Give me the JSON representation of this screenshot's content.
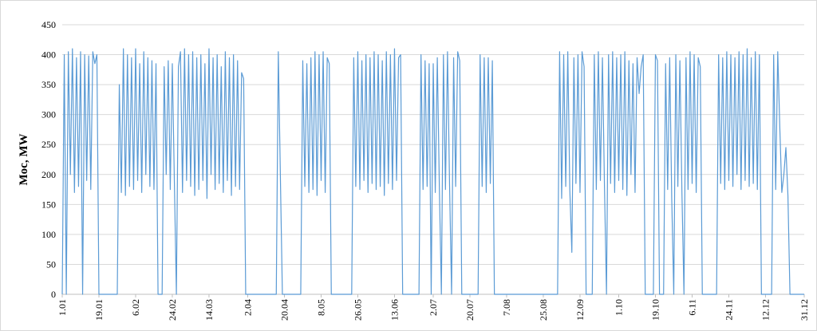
{
  "chart_data": {
    "type": "line",
    "y_label": "Moc, MW",
    "color": "#5b9bd5",
    "grid": true,
    "xlim": [
      0,
      364
    ],
    "ylim": [
      0,
      450
    ],
    "yticks": [
      0,
      50,
      100,
      150,
      200,
      250,
      300,
      350,
      400,
      450
    ],
    "xticks": [
      {
        "value": 0,
        "label": "1.01"
      },
      {
        "value": 18,
        "label": "19.01"
      },
      {
        "value": 36,
        "label": "6.02"
      },
      {
        "value": 54,
        "label": "24.02"
      },
      {
        "value": 72,
        "label": "14.03"
      },
      {
        "value": 91,
        "label": "2.04"
      },
      {
        "value": 109,
        "label": "20.04"
      },
      {
        "value": 127,
        "label": "8.05"
      },
      {
        "value": 145,
        "label": "26.05"
      },
      {
        "value": 163,
        "label": "13.06"
      },
      {
        "value": 182,
        "label": "2.07"
      },
      {
        "value": 200,
        "label": "20.07"
      },
      {
        "value": 218,
        "label": "7.08"
      },
      {
        "value": 236,
        "label": "25.08"
      },
      {
        "value": 254,
        "label": "12.09"
      },
      {
        "value": 273,
        "label": "1.10"
      },
      {
        "value": 291,
        "label": "19.10"
      },
      {
        "value": 309,
        "label": "6.11"
      },
      {
        "value": 327,
        "label": "24.11"
      },
      {
        "value": 345,
        "label": "12.12"
      },
      {
        "value": 364,
        "label": "31.12"
      }
    ],
    "x": [
      0,
      1,
      2,
      3,
      4,
      5,
      6,
      7,
      8,
      9,
      10,
      11,
      12,
      13,
      14,
      15,
      16,
      17,
      18,
      19,
      20,
      21,
      22,
      23,
      24,
      25,
      26,
      27,
      28,
      29,
      30,
      31,
      32,
      33,
      34,
      35,
      36,
      37,
      38,
      39,
      40,
      41,
      42,
      43,
      44,
      45,
      46,
      47,
      48,
      49,
      50,
      51,
      52,
      53,
      54,
      55,
      56,
      57,
      58,
      59,
      60,
      61,
      62,
      63,
      64,
      65,
      66,
      67,
      68,
      69,
      70,
      71,
      72,
      73,
      74,
      75,
      76,
      77,
      78,
      79,
      80,
      81,
      82,
      83,
      84,
      85,
      86,
      87,
      88,
      89,
      90,
      91,
      92,
      93,
      94,
      95,
      96,
      97,
      98,
      99,
      100,
      101,
      102,
      103,
      104,
      105,
      106,
      107,
      108,
      109,
      110,
      111,
      112,
      113,
      114,
      115,
      116,
      117,
      118,
      119,
      120,
      121,
      122,
      123,
      124,
      125,
      126,
      127,
      128,
      129,
      130,
      131,
      132,
      133,
      134,
      135,
      136,
      137,
      138,
      139,
      140,
      141,
      142,
      143,
      144,
      145,
      146,
      147,
      148,
      149,
      150,
      151,
      152,
      153,
      154,
      155,
      156,
      157,
      158,
      159,
      160,
      161,
      162,
      163,
      164,
      165,
      166,
      167,
      168,
      169,
      170,
      171,
      172,
      173,
      174,
      175,
      176,
      177,
      178,
      179,
      180,
      181,
      182,
      183,
      184,
      185,
      186,
      187,
      188,
      189,
      190,
      191,
      192,
      193,
      194,
      195,
      196,
      197,
      198,
      199,
      200,
      201,
      202,
      203,
      204,
      205,
      206,
      207,
      208,
      209,
      210,
      211,
      212,
      213,
      214,
      215,
      216,
      217,
      218,
      219,
      220,
      221,
      222,
      223,
      224,
      225,
      226,
      227,
      228,
      229,
      230,
      231,
      232,
      233,
      234,
      235,
      236,
      237,
      238,
      239,
      240,
      241,
      242,
      243,
      244,
      245,
      246,
      247,
      248,
      249,
      250,
      251,
      252,
      253,
      254,
      255,
      256,
      257,
      258,
      259,
      260,
      261,
      262,
      263,
      264,
      265,
      266,
      267,
      268,
      269,
      270,
      271,
      272,
      273,
      274,
      275,
      276,
      277,
      278,
      279,
      280,
      281,
      282,
      283,
      284,
      285,
      286,
      287,
      288,
      289,
      290,
      291,
      292,
      293,
      294,
      295,
      296,
      297,
      298,
      299,
      300,
      301,
      302,
      303,
      304,
      305,
      306,
      307,
      308,
      309,
      310,
      311,
      312,
      313,
      314,
      315,
      316,
      317,
      318,
      319,
      320,
      321,
      322,
      323,
      324,
      325,
      326,
      327,
      328,
      329,
      330,
      331,
      332,
      333,
      334,
      335,
      336,
      337,
      338,
      339,
      340,
      341,
      342,
      343,
      344,
      345,
      346,
      347,
      348,
      349,
      350,
      351,
      352,
      353,
      354,
      355,
      356,
      357,
      358,
      359,
      360,
      361,
      362,
      363,
      364
    ],
    "values": [
      0,
      400,
      0,
      405,
      200,
      410,
      170,
      395,
      180,
      405,
      0,
      400,
      190,
      398,
      175,
      405,
      385,
      400,
      0,
      0,
      0,
      0,
      0,
      0,
      0,
      0,
      0,
      0,
      350,
      170,
      410,
      165,
      400,
      180,
      395,
      175,
      410,
      190,
      385,
      170,
      405,
      200,
      395,
      180,
      390,
      175,
      385,
      0,
      0,
      0,
      380,
      200,
      390,
      175,
      385,
      190,
      0,
      380,
      405,
      170,
      410,
      190,
      400,
      180,
      405,
      165,
      395,
      175,
      400,
      190,
      385,
      160,
      410,
      200,
      395,
      175,
      400,
      185,
      380,
      170,
      405,
      190,
      395,
      165,
      400,
      180,
      390,
      175,
      370,
      360,
      0,
      0,
      0,
      0,
      0,
      0,
      0,
      0,
      0,
      0,
      0,
      0,
      0,
      0,
      0,
      0,
      405,
      200,
      0,
      0,
      0,
      0,
      0,
      0,
      0,
      0,
      0,
      0,
      390,
      180,
      385,
      170,
      395,
      175,
      405,
      165,
      400,
      190,
      405,
      170,
      395,
      385,
      0,
      0,
      0,
      0,
      0,
      0,
      0,
      0,
      0,
      0,
      0,
      395,
      180,
      405,
      175,
      390,
      190,
      400,
      170,
      395,
      185,
      405,
      175,
      400,
      180,
      390,
      165,
      405,
      185,
      400,
      175,
      410,
      190,
      395,
      400,
      0,
      0,
      0,
      0,
      0,
      0,
      0,
      0,
      0,
      400,
      175,
      390,
      180,
      385,
      0,
      385,
      170,
      395,
      180,
      0,
      400,
      175,
      405,
      185,
      0,
      395,
      180,
      405,
      390,
      0,
      0,
      0,
      0,
      0,
      0,
      0,
      0,
      0,
      400,
      180,
      395,
      170,
      395,
      185,
      390,
      0,
      0,
      0,
      0,
      0,
      0,
      0,
      0,
      0,
      0,
      0,
      0,
      0,
      0,
      0,
      0,
      0,
      0,
      0,
      0,
      0,
      0,
      0,
      0,
      0,
      0,
      0,
      0,
      0,
      0,
      0,
      0,
      405,
      160,
      400,
      180,
      405,
      175,
      70,
      395,
      185,
      400,
      170,
      405,
      380,
      0,
      0,
      0,
      0,
      400,
      175,
      405,
      190,
      395,
      180,
      0,
      400,
      185,
      405,
      170,
      395,
      190,
      400,
      175,
      405,
      165,
      390,
      200,
      385,
      170,
      395,
      335,
      380,
      400,
      0,
      0,
      0,
      0,
      0,
      400,
      390,
      0,
      0,
      0,
      385,
      175,
      395,
      160,
      0,
      400,
      180,
      390,
      170,
      0,
      395,
      175,
      405,
      185,
      400,
      170,
      395,
      380,
      0,
      0,
      0,
      0,
      0,
      0,
      0,
      0,
      400,
      185,
      395,
      175,
      405,
      190,
      400,
      180,
      395,
      200,
      405,
      175,
      400,
      190,
      410,
      180,
      395,
      185,
      405,
      175,
      400,
      0,
      0,
      0,
      0,
      0,
      0,
      400,
      175,
      405,
      280,
      170,
      200,
      245,
      165,
      0,
      0,
      0,
      0,
      0,
      0,
      0,
      0
    ]
  }
}
